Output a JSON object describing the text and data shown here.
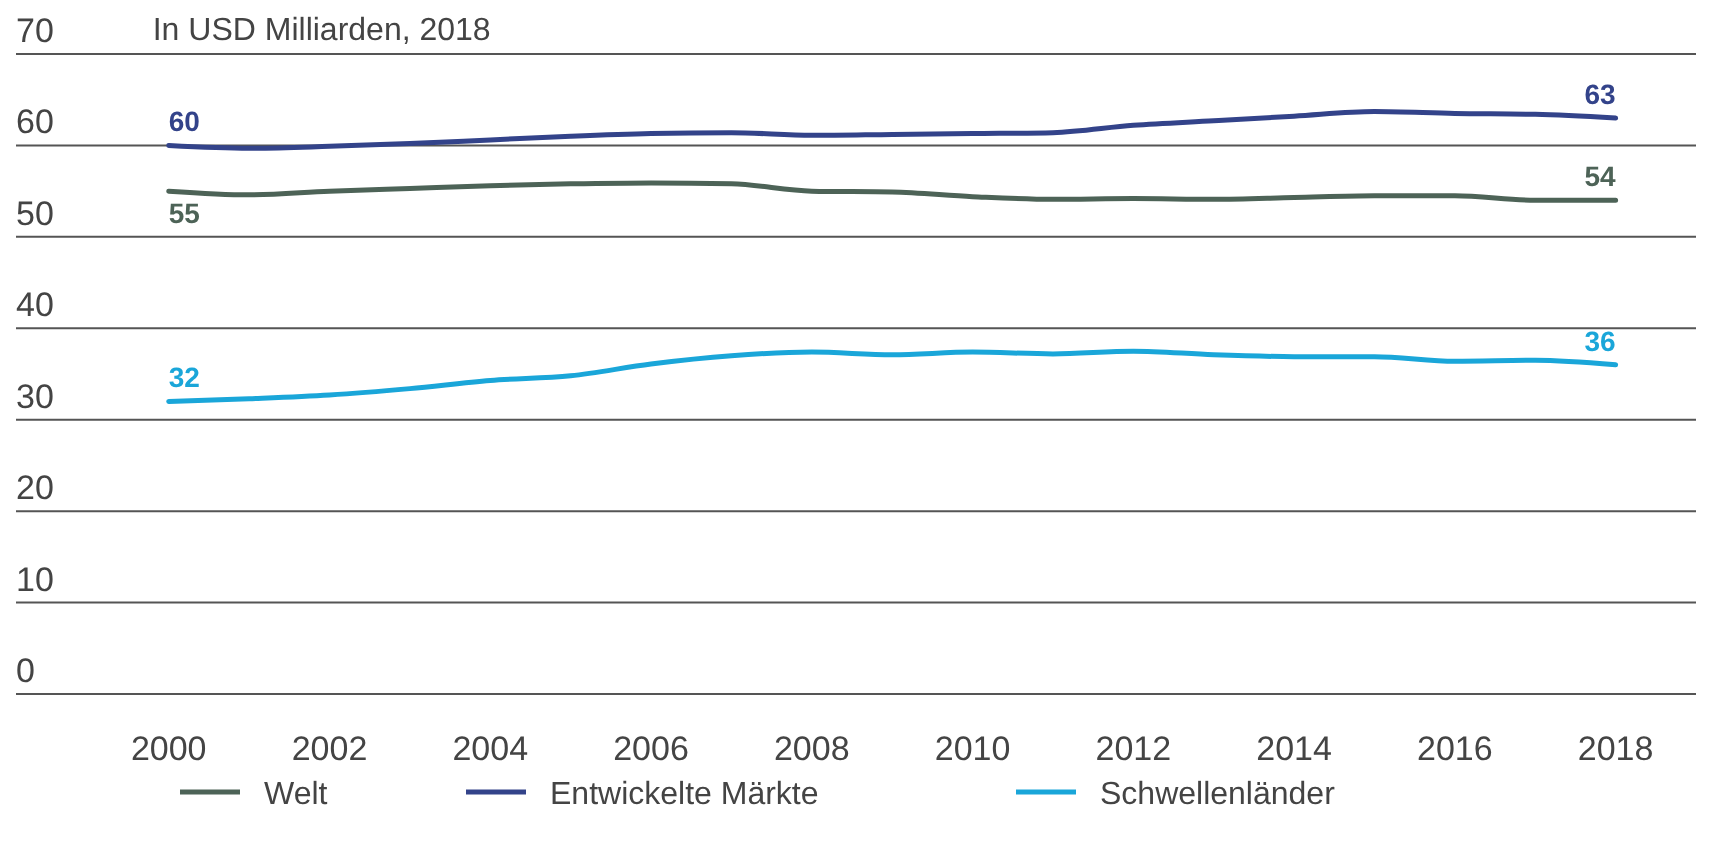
{
  "chart_data": {
    "type": "line",
    "title": "In USD Milliarden, 2018",
    "x": [
      2000,
      2001,
      2002,
      2003,
      2004,
      2005,
      2006,
      2007,
      2008,
      2009,
      2010,
      2011,
      2012,
      2013,
      2014,
      2015,
      2016,
      2017,
      2018
    ],
    "series": [
      {
        "name": "Welt",
        "color": "#4d6357",
        "values": [
          55,
          54.6,
          55,
          55.3,
          55.6,
          55.8,
          55.9,
          55.8,
          55,
          54.9,
          54.4,
          54.1,
          54.2,
          54.1,
          54.3,
          54.5,
          54.5,
          54,
          54
        ],
        "value_labels": [
          "55",
          null,
          null,
          null,
          null,
          null,
          null,
          null,
          null,
          null,
          null,
          null,
          null,
          null,
          null,
          null,
          null,
          null,
          "54"
        ]
      },
      {
        "name": "Entwickelte Märkte",
        "color": "#33438a",
        "values": [
          60,
          59.7,
          59.9,
          60.2,
          60.6,
          61,
          61.3,
          61.4,
          61.1,
          61.2,
          61.3,
          61.4,
          62.2,
          62.7,
          63.2,
          63.7,
          63.5,
          63.4,
          63
        ],
        "value_labels": [
          "60",
          null,
          null,
          null,
          null,
          null,
          null,
          null,
          null,
          null,
          null,
          null,
          null,
          null,
          null,
          null,
          null,
          null,
          "63"
        ]
      },
      {
        "name": "Schwellenländer",
        "color": "#1aa6d9",
        "values": [
          32,
          32.3,
          32.7,
          33.4,
          34.3,
          34.8,
          36.1,
          37,
          37.4,
          37.1,
          37.4,
          37.2,
          37.5,
          37.1,
          36.9,
          36.9,
          36.4,
          36.5,
          36
        ],
        "value_labels": [
          "32",
          null,
          null,
          null,
          null,
          null,
          null,
          null,
          null,
          null,
          null,
          null,
          null,
          null,
          null,
          null,
          null,
          null,
          "36"
        ]
      }
    ],
    "xlim": [
      1998.1,
      2019
    ],
    "xticks": [
      2000,
      2002,
      2004,
      2006,
      2008,
      2010,
      2012,
      2014,
      2016,
      2018
    ],
    "ylim": [
      0,
      70
    ],
    "yticks": [
      0,
      10,
      20,
      30,
      40,
      50,
      60,
      70
    ],
    "grid": "y",
    "legend": "bottom",
    "marker": "none",
    "line_style": "solid"
  }
}
